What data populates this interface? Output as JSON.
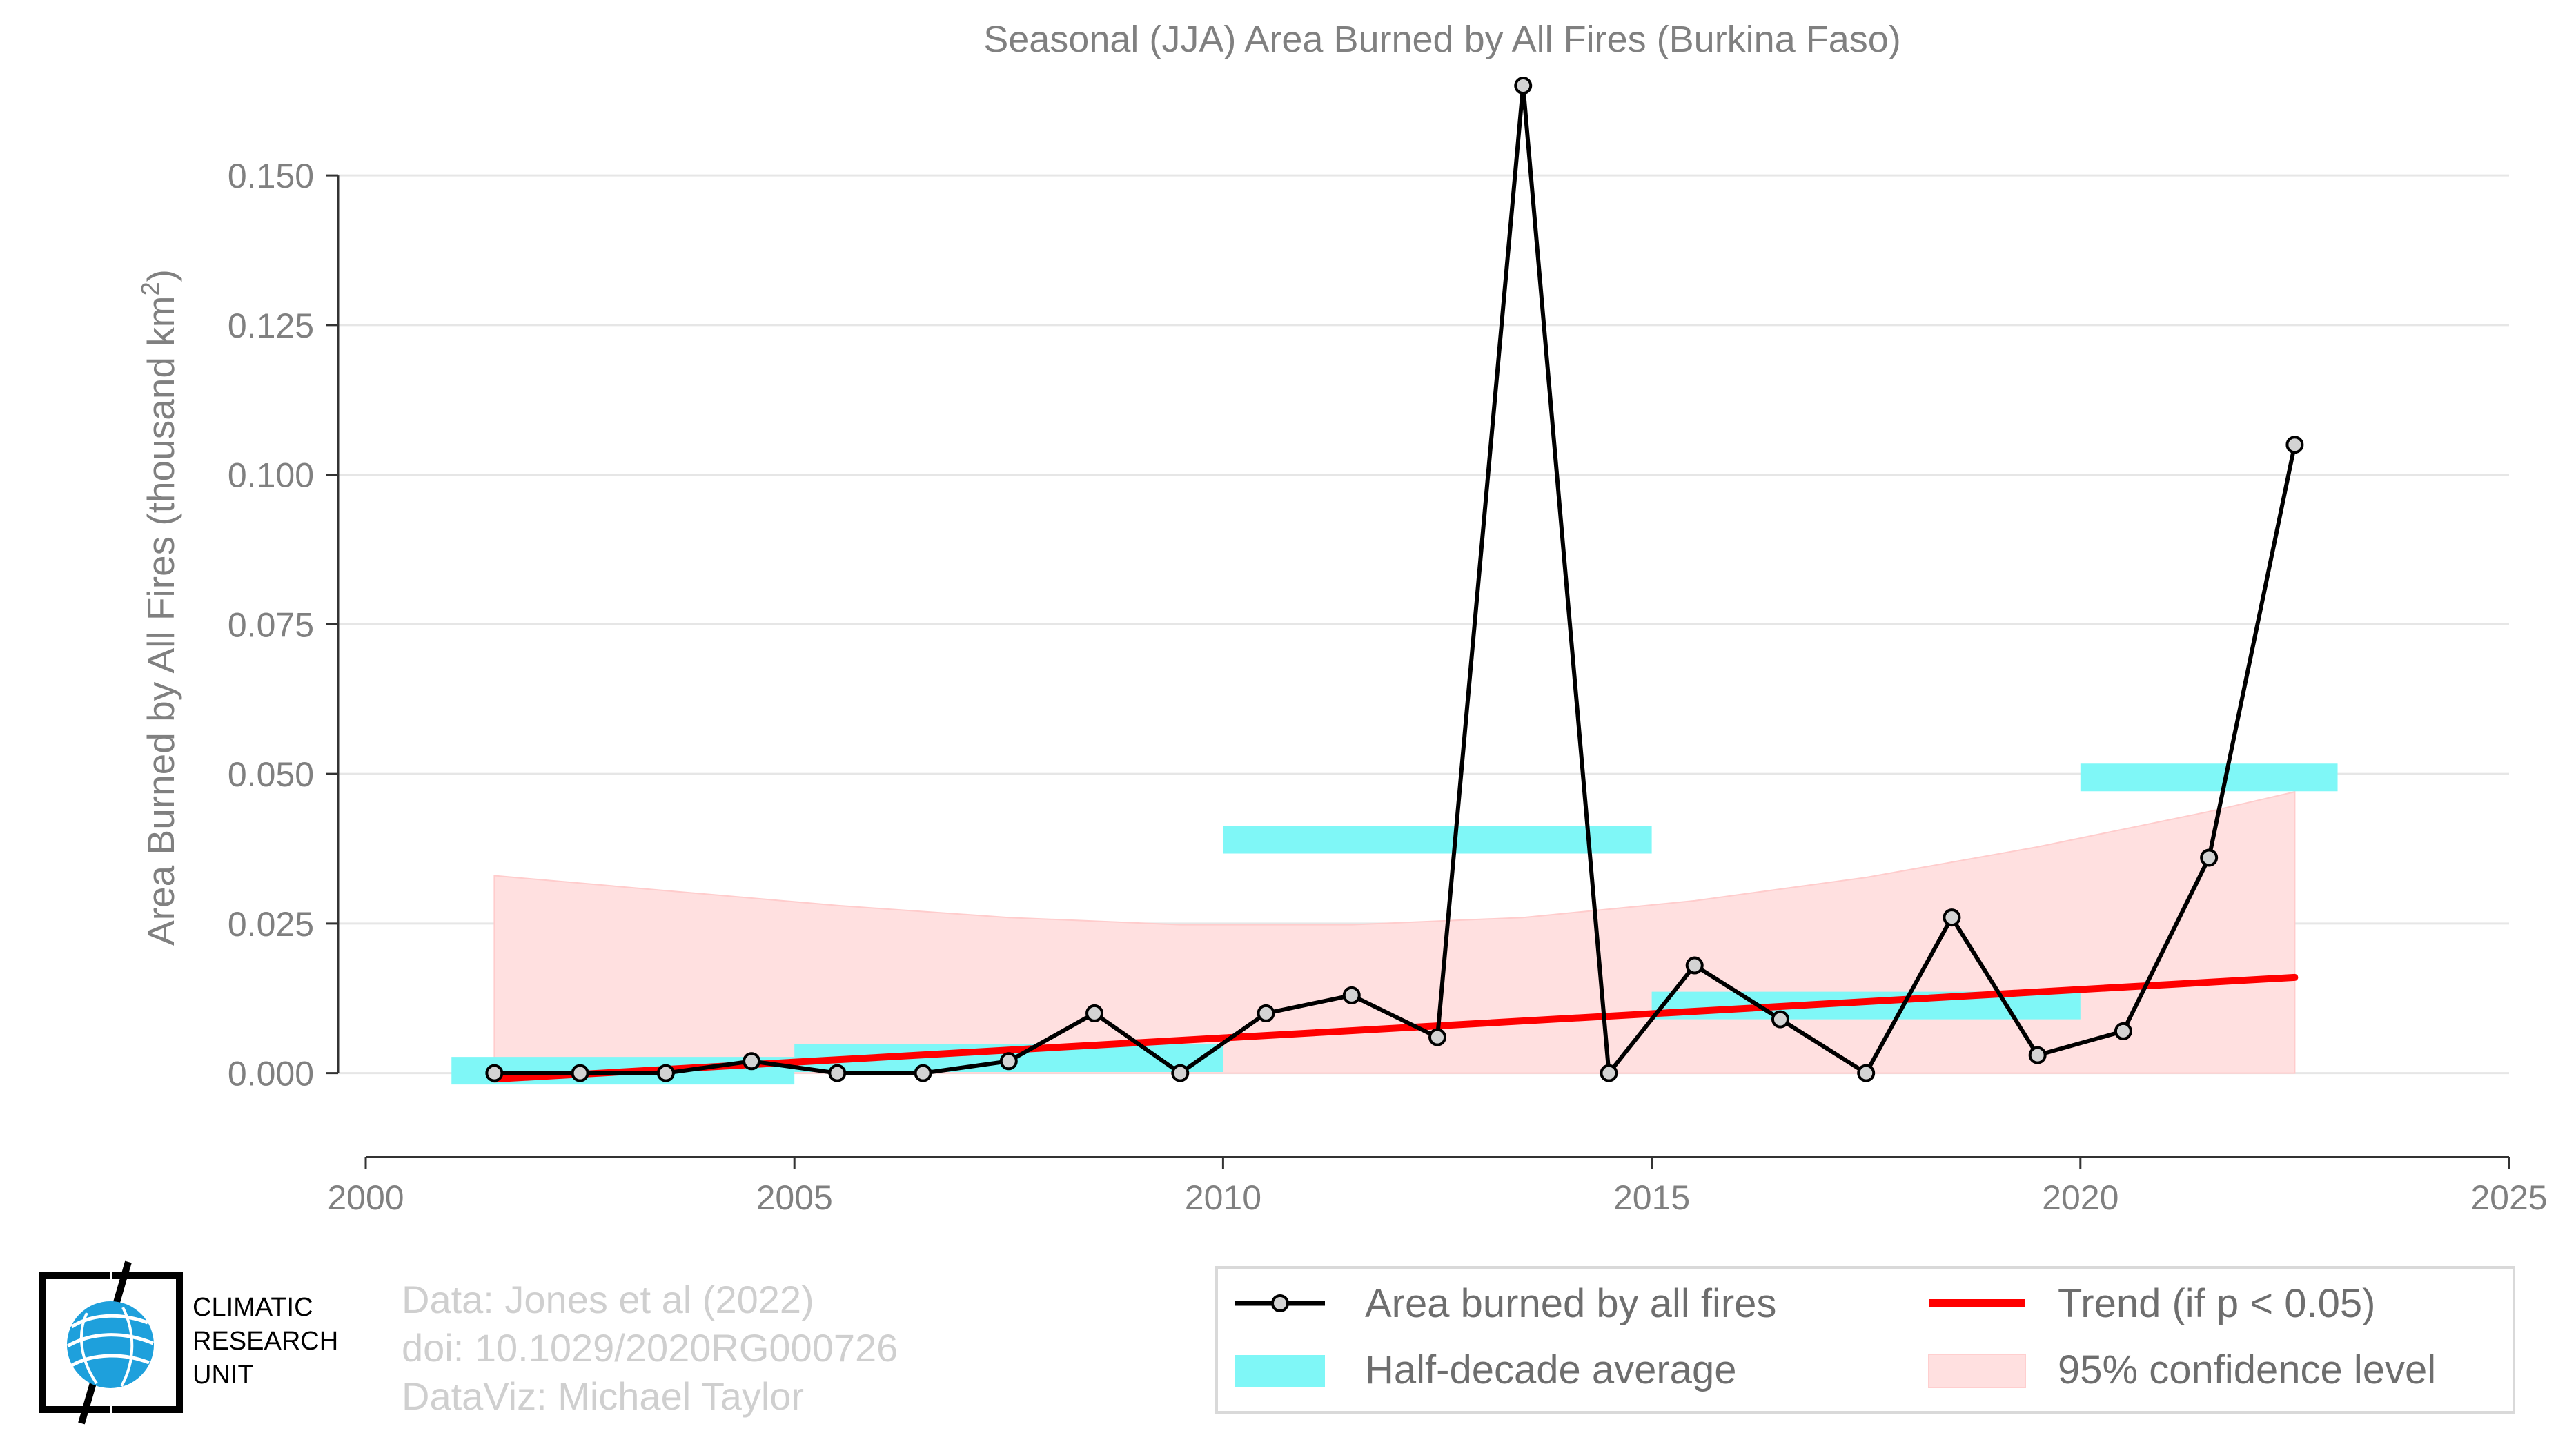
{
  "chart_data": {
    "type": "line",
    "title": "Seasonal (JJA) Area Burned by All Fires (Burkina Faso)",
    "ylabel": "Area Burned by All Fires (thousand km²)",
    "ylabel_main": "Area Burned by All Fires (thousand km",
    "ylabel_sup": "2",
    "ylabel_end": ")",
    "xlim": [
      2000,
      2025
    ],
    "ylim": [
      -0.014,
      0.168
    ],
    "xticks": [
      2000,
      2005,
      2010,
      2015,
      2020,
      2025
    ],
    "xtick_labels": [
      "2000",
      "2005",
      "2010",
      "2015",
      "2020",
      "2025"
    ],
    "yticks": [
      0.0,
      0.025,
      0.05,
      0.075,
      0.1,
      0.125,
      0.15
    ],
    "ytick_labels": [
      "0.000",
      "0.025",
      "0.050",
      "0.075",
      "0.100",
      "0.125",
      "0.150"
    ],
    "grid": true,
    "series": [
      {
        "name": "Area burned by all fires",
        "type": "line",
        "color": "#000000",
        "marker_fill": "#d3d3d3",
        "x": [
          2001.5,
          2002.5,
          2003.5,
          2004.5,
          2005.5,
          2006.5,
          2007.5,
          2008.5,
          2009.5,
          2010.5,
          2011.5,
          2012.5,
          2013.5,
          2014.5,
          2015.5,
          2016.5,
          2017.5,
          2018.5,
          2019.5,
          2020.5,
          2021.5,
          2022.5
        ],
        "y": [
          0.0,
          0.0,
          0.0,
          0.002,
          0.0,
          0.0,
          0.002,
          0.01,
          0.0,
          0.01,
          0.013,
          0.006,
          0.165,
          0.0,
          0.018,
          0.009,
          0.0,
          0.026,
          0.003,
          0.007,
          0.036,
          0.105
        ]
      },
      {
        "name": "Half-decade average",
        "type": "segments",
        "color": "#7ff7f7",
        "segments": [
          {
            "x0": 2001.0,
            "x1": 2005.0,
            "y": 0.0004
          },
          {
            "x0": 2005.0,
            "x1": 2010.0,
            "y": 0.0025
          },
          {
            "x0": 2010.0,
            "x1": 2015.0,
            "y": 0.039
          },
          {
            "x0": 2015.0,
            "x1": 2020.0,
            "y": 0.0113
          },
          {
            "x0": 2020.0,
            "x1": 2023.0,
            "y": 0.0494
          }
        ]
      },
      {
        "name": "Trend (if p < 0.05)",
        "type": "line",
        "color": "#ff0000",
        "x": [
          2001.5,
          2022.5
        ],
        "y": [
          -0.001,
          0.016
        ]
      },
      {
        "name": "95% confidence level",
        "type": "area",
        "color": "#ffe0e0",
        "x": [
          2001.5,
          2003.5,
          2005.5,
          2007.5,
          2009.5,
          2011.5,
          2013.5,
          2015.5,
          2017.5,
          2019.5,
          2021.5,
          2022.5
        ],
        "upper": [
          0.033,
          0.0305,
          0.028,
          0.026,
          0.0248,
          0.0248,
          0.026,
          0.0288,
          0.0327,
          0.0378,
          0.0437,
          0.047
        ],
        "lower": [
          0.0,
          0.0,
          0.0,
          0.0,
          0.0,
          0.0,
          0.0,
          0.0,
          0.0,
          0.0,
          0.0,
          0.0
        ]
      }
    ],
    "legend": {
      "placement": "bottom-right",
      "entries": [
        "Area burned by all fires",
        "Trend (if p < 0.05)",
        "Half-decade average",
        "95% confidence level"
      ]
    }
  },
  "credits": {
    "line1": "Data: Jones et al (2022)",
    "line2": "doi: 10.1029/2020RG000726",
    "line3": "DataViz: Michael Taylor"
  },
  "logo": {
    "line1": "CLIMATIC",
    "line2": "RESEARCH",
    "line3": "UNIT"
  }
}
